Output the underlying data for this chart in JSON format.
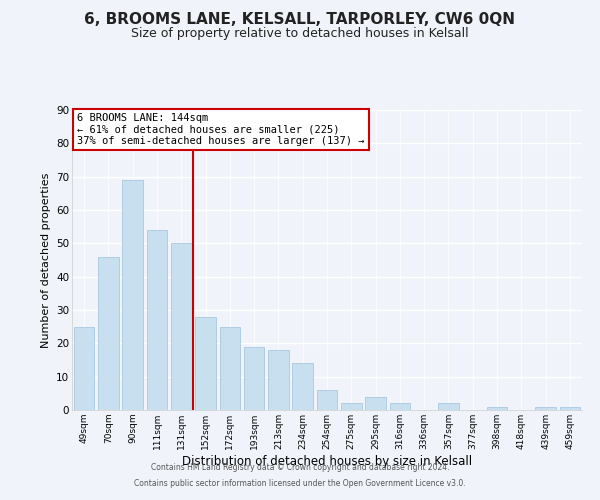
{
  "title": "6, BROOMS LANE, KELSALL, TARPORLEY, CW6 0QN",
  "subtitle": "Size of property relative to detached houses in Kelsall",
  "xlabel": "Distribution of detached houses by size in Kelsall",
  "ylabel": "Number of detached properties",
  "bar_labels": [
    "49sqm",
    "70sqm",
    "90sqm",
    "111sqm",
    "131sqm",
    "152sqm",
    "172sqm",
    "193sqm",
    "213sqm",
    "234sqm",
    "254sqm",
    "275sqm",
    "295sqm",
    "316sqm",
    "336sqm",
    "357sqm",
    "377sqm",
    "398sqm",
    "418sqm",
    "439sqm",
    "459sqm"
  ],
  "bar_values": [
    25,
    46,
    69,
    54,
    50,
    28,
    25,
    19,
    18,
    14,
    6,
    2,
    4,
    2,
    0,
    2,
    0,
    1,
    0,
    1,
    1
  ],
  "bar_color": "#c8dff0",
  "bar_edge_color": "#a8c8e0",
  "vline_color": "#cc0000",
  "ylim": [
    0,
    90
  ],
  "yticks": [
    0,
    10,
    20,
    30,
    40,
    50,
    60,
    70,
    80,
    90
  ],
  "annotation_title": "6 BROOMS LANE: 144sqm",
  "annotation_line1": "← 61% of detached houses are smaller (225)",
  "annotation_line2": "37% of semi-detached houses are larger (137) →",
  "annotation_box_color": "#ffffff",
  "annotation_box_edge": "#cc0000",
  "footer1": "Contains HM Land Registry data © Crown copyright and database right 2024.",
  "footer2": "Contains public sector information licensed under the Open Government Licence v3.0.",
  "background_color": "#f0f4fa",
  "grid_color": "#ffffff",
  "title_fontsize": 11,
  "subtitle_fontsize": 9
}
